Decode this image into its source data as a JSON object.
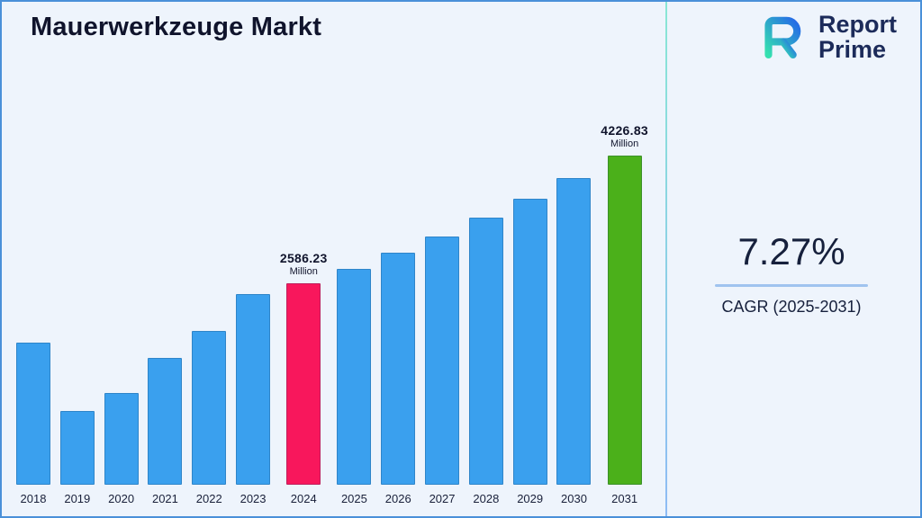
{
  "page": {
    "title": "Mauerwerkzeuge Markt",
    "logo": {
      "line1": "Report",
      "line2": "Prime"
    },
    "cagr": {
      "value": "7.27%",
      "label": "CAGR (2025-2031)"
    }
  },
  "chart_data": {
    "type": "bar",
    "title": "Mauerwerkzeuge Markt",
    "unit": "Million",
    "categories": [
      "2018",
      "2019",
      "2020",
      "2021",
      "2022",
      "2023",
      "2024",
      "2025",
      "2026",
      "2027",
      "2028",
      "2029",
      "2030",
      "2031"
    ],
    "values": [
      1820,
      950,
      1180,
      1630,
      1970,
      2450,
      2586.23,
      2774.2,
      2975.9,
      3192.3,
      3424.4,
      3673.3,
      3940.4,
      4226.83
    ],
    "values_note": "Only 2024 and 2031 are labeled in the figure; other values estimated from bar heights",
    "ylim": [
      0,
      4400
    ],
    "grid": false,
    "legend": "none",
    "bar_color_default": "#3aa0ee",
    "highlight_colors": {
      "2024": "#f8175c",
      "2031": "#4bb01a"
    },
    "annotations": [
      {
        "category": "2024",
        "value": "2586.23",
        "unit": "Million"
      },
      {
        "category": "2031",
        "value": "4226.83",
        "unit": "Million"
      }
    ]
  }
}
